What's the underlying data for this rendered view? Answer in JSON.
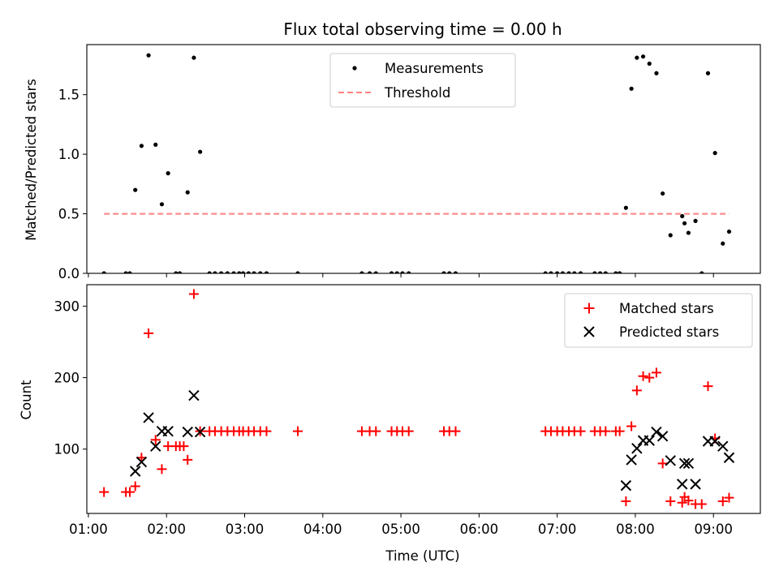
{
  "chart_data": [
    {
      "type": "scatter",
      "title": "Flux total observing time = 0.00 h",
      "xlabel": "",
      "ylabel": "Matched/Predicted stars",
      "xlim": [
        0.98,
        9.6
      ],
      "ylim": [
        0,
        1.92
      ],
      "xscale": "time-of-day (hours UTC)",
      "yticks": [
        0.0,
        0.5,
        1.0,
        1.5
      ],
      "ytick_labels": [
        "0.0",
        "0.5",
        "1.0",
        "1.5"
      ],
      "legend_position": "top-center",
      "series": [
        {
          "name": "Measurements",
          "marker": "dot",
          "color": "#000000",
          "x": [
            1.2,
            1.48,
            1.53,
            1.6,
            1.68,
            1.77,
            1.86,
            1.94,
            2.02,
            2.12,
            2.17,
            2.27,
            2.35,
            2.43,
            2.55,
            2.62,
            2.7,
            2.78,
            2.86,
            2.93,
            2.98,
            3.05,
            3.12,
            3.2,
            3.28,
            3.68,
            4.5,
            4.6,
            4.68,
            4.88,
            4.95,
            5.02,
            5.1,
            5.55,
            5.62,
            5.7,
            6.85,
            6.92,
            7.0,
            7.07,
            7.15,
            7.22,
            7.3,
            7.48,
            7.55,
            7.62,
            7.75,
            7.8,
            7.88,
            7.95,
            8.02,
            8.1,
            8.18,
            8.27,
            8.35,
            8.45,
            8.6,
            8.63,
            8.68,
            8.77,
            8.85,
            8.93,
            9.02,
            9.12,
            9.2
          ],
          "y": [
            0.0,
            0.0,
            0.0,
            0.7,
            1.07,
            1.83,
            1.08,
            0.58,
            0.84,
            0.0,
            0.0,
            0.68,
            1.81,
            1.02,
            0.0,
            0.0,
            0.0,
            0.0,
            0.0,
            0.0,
            0.0,
            0.0,
            0.0,
            0.0,
            0.0,
            0.0,
            0.0,
            0.0,
            0.0,
            0.0,
            0.0,
            0.0,
            0.0,
            0.0,
            0.0,
            0.0,
            0.0,
            0.0,
            0.0,
            0.0,
            0.0,
            0.0,
            0.0,
            0.0,
            0.0,
            0.0,
            0.0,
            0.0,
            0.55,
            1.55,
            1.81,
            1.82,
            1.76,
            1.68,
            0.67,
            0.32,
            0.48,
            0.42,
            0.34,
            0.44,
            0.0,
            1.68,
            1.01,
            0.25,
            0.35
          ]
        },
        {
          "name": "Threshold",
          "marker": "dashed-line",
          "color": "#ff8080",
          "x": [
            1.2,
            9.2
          ],
          "y": [
            0.5,
            0.5
          ]
        }
      ]
    },
    {
      "type": "scatter",
      "title": "",
      "xlabel": "Time (UTC)",
      "ylabel": "Count",
      "xlim": [
        0.98,
        9.6
      ],
      "ylim": [
        10,
        330
      ],
      "xscale": "time-of-day (hours UTC)",
      "xticks": [
        "01:00",
        "02:00",
        "03:00",
        "04:00",
        "05:00",
        "06:00",
        "07:00",
        "08:00",
        "09:00"
      ],
      "yticks": [
        100,
        200,
        300
      ],
      "ytick_labels": [
        "100",
        "200",
        "300"
      ],
      "legend_position": "top-right",
      "series": [
        {
          "name": "Matched stars",
          "marker": "plus",
          "color": "#ff0000",
          "x": [
            1.2,
            1.48,
            1.53,
            1.6,
            1.68,
            1.77,
            1.86,
            1.94,
            2.02,
            2.12,
            2.17,
            2.22,
            2.27,
            2.35,
            2.43,
            2.55,
            2.62,
            2.7,
            2.78,
            2.86,
            2.93,
            2.98,
            3.05,
            3.12,
            3.2,
            3.28,
            3.68,
            4.5,
            4.6,
            4.68,
            4.88,
            4.95,
            5.02,
            5.1,
            5.55,
            5.62,
            5.7,
            6.85,
            6.92,
            7.0,
            7.07,
            7.15,
            7.22,
            7.3,
            7.48,
            7.55,
            7.62,
            7.75,
            7.8,
            7.88,
            7.95,
            8.02,
            8.1,
            8.18,
            8.27,
            8.35,
            8.45,
            8.6,
            8.63,
            8.68,
            8.77,
            8.85,
            8.93,
            9.02,
            9.12,
            9.2
          ],
          "y": [
            40,
            40,
            40,
            48,
            88,
            262,
            113,
            72,
            104,
            104,
            104,
            104,
            85,
            317,
            125,
            125,
            125,
            125,
            125,
            125,
            125,
            125,
            125,
            125,
            125,
            125,
            125,
            125,
            125,
            125,
            125,
            125,
            125,
            125,
            125,
            125,
            125,
            125,
            125,
            125,
            125,
            125,
            125,
            125,
            125,
            125,
            125,
            125,
            125,
            27,
            132,
            182,
            202,
            200,
            207,
            80,
            27,
            25,
            33,
            28,
            23,
            23,
            188,
            115,
            27,
            32
          ]
        },
        {
          "name": "Predicted stars",
          "marker": "x",
          "color": "#000000",
          "x": [
            1.6,
            1.68,
            1.77,
            1.86,
            1.94,
            2.02,
            2.27,
            2.35,
            2.43,
            7.88,
            7.95,
            8.02,
            8.1,
            8.18,
            8.27,
            8.35,
            8.45,
            8.6,
            8.63,
            8.68,
            8.77,
            8.93,
            9.02,
            9.12,
            9.2
          ],
          "y": [
            69,
            82,
            144,
            104,
            125,
            125,
            124,
            175,
            124,
            49,
            85,
            101,
            112,
            112,
            124,
            118,
            84,
            51,
            80,
            80,
            51,
            111,
            111,
            104,
            88
          ]
        }
      ]
    }
  ]
}
